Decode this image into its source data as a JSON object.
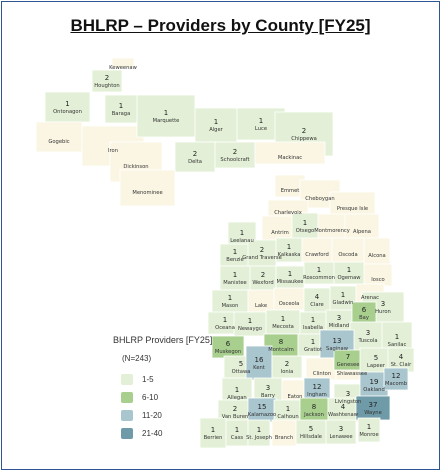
{
  "title": "BHLRP – Providers by County [FY25]",
  "legend": {
    "title": "BHLRP Providers [FY25]",
    "n_label": "(N=243)",
    "items": [
      {
        "label": "1-5",
        "color": "#e3efd6"
      },
      {
        "label": "6-10",
        "color": "#a9cf8f"
      },
      {
        "label": "11-20",
        "color": "#a9c6cf"
      },
      {
        "label": "21-40",
        "color": "#6f9aa8"
      }
    ],
    "zero_color": "#fbf6e4"
  },
  "counties": [
    {
      "name": "Keweenaw",
      "count": null
    },
    {
      "name": "Houghton",
      "count": 2
    },
    {
      "name": "Ontonagon",
      "count": 1
    },
    {
      "name": "Baraga",
      "count": 1
    },
    {
      "name": "Gogebic",
      "count": null
    },
    {
      "name": "Iron",
      "count": null
    },
    {
      "name": "Marquette",
      "count": 1
    },
    {
      "name": "Alger",
      "count": 1
    },
    {
      "name": "Schoolcraft",
      "count": 2
    },
    {
      "name": "Luce",
      "count": 1
    },
    {
      "name": "Chippewa",
      "count": 2
    },
    {
      "name": "Dickinson",
      "count": null
    },
    {
      "name": "Delta",
      "count": 2
    },
    {
      "name": "Mackinac",
      "count": null
    },
    {
      "name": "Menominee",
      "count": null
    },
    {
      "name": "Emmet",
      "count": null
    },
    {
      "name": "Cheboygan",
      "count": null
    },
    {
      "name": "Presque Isle",
      "count": null
    },
    {
      "name": "Charlevoix",
      "count": null
    },
    {
      "name": "Leelanau",
      "count": 1
    },
    {
      "name": "Antrim",
      "count": null
    },
    {
      "name": "Otsego",
      "count": 1
    },
    {
      "name": "Montmorency",
      "count": null
    },
    {
      "name": "Alpena",
      "count": null
    },
    {
      "name": "Benzie",
      "count": 1
    },
    {
      "name": "Grand Traverse",
      "count": 2
    },
    {
      "name": "Kalkaska",
      "count": 1
    },
    {
      "name": "Crawford",
      "count": null
    },
    {
      "name": "Oscoda",
      "count": null
    },
    {
      "name": "Alcona",
      "count": null
    },
    {
      "name": "Manistee",
      "count": 1
    },
    {
      "name": "Wexford",
      "count": 2
    },
    {
      "name": "Missaukee",
      "count": 1
    },
    {
      "name": "Roscommon",
      "count": 1
    },
    {
      "name": "Ogemaw",
      "count": 1
    },
    {
      "name": "Iosco",
      "count": null
    },
    {
      "name": "Mason",
      "count": 1
    },
    {
      "name": "Lake",
      "count": null
    },
    {
      "name": "Osceola",
      "count": null
    },
    {
      "name": "Clare",
      "count": 4
    },
    {
      "name": "Gladwin",
      "count": 1
    },
    {
      "name": "Arenac",
      "count": null
    },
    {
      "name": "Huron",
      "count": 3
    },
    {
      "name": "Oceana",
      "count": 1
    },
    {
      "name": "Newaygo",
      "count": 1
    },
    {
      "name": "Mecosta",
      "count": 1
    },
    {
      "name": "Isabella",
      "count": 1
    },
    {
      "name": "Midland",
      "count": 3
    },
    {
      "name": "Bay",
      "count": 6
    },
    {
      "name": "Tuscola",
      "count": 3
    },
    {
      "name": "Sanilac",
      "count": 1
    },
    {
      "name": "Muskegon",
      "count": 6
    },
    {
      "name": "Montcalm",
      "count": 8
    },
    {
      "name": "Gratiot",
      "count": 1
    },
    {
      "name": "Saginaw",
      "count": 13
    },
    {
      "name": "Ottawa",
      "count": 5
    },
    {
      "name": "Kent",
      "count": 16
    },
    {
      "name": "Ionia",
      "count": 2
    },
    {
      "name": "Clinton",
      "count": null
    },
    {
      "name": "Shiawassee",
      "count": null
    },
    {
      "name": "Genesee",
      "count": 7
    },
    {
      "name": "Lapeer",
      "count": 5
    },
    {
      "name": "St. Clair",
      "count": 4
    },
    {
      "name": "Allegan",
      "count": 1
    },
    {
      "name": "Barry",
      "count": 3
    },
    {
      "name": "Eaton",
      "count": null
    },
    {
      "name": "Ingham",
      "count": 12
    },
    {
      "name": "Livingston",
      "count": 3
    },
    {
      "name": "Oakland",
      "count": 19
    },
    {
      "name": "Macomb",
      "count": 12
    },
    {
      "name": "Van Buren",
      "count": 2
    },
    {
      "name": "Kalamazoo",
      "count": 15
    },
    {
      "name": "Calhoun",
      "count": 1
    },
    {
      "name": "Jackson",
      "count": 8
    },
    {
      "name": "Washtenaw",
      "count": 4
    },
    {
      "name": "Wayne",
      "count": 37
    },
    {
      "name": "Berrien",
      "count": 1
    },
    {
      "name": "Cass",
      "count": 1
    },
    {
      "name": "St. Joseph",
      "count": 1
    },
    {
      "name": "Branch",
      "count": null
    },
    {
      "name": "Hillsdale",
      "count": 5
    },
    {
      "name": "Lenawee",
      "count": 3
    },
    {
      "name": "Monroe",
      "count": 1
    }
  ]
}
